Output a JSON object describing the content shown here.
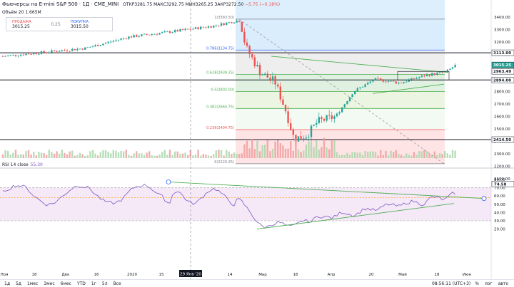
{
  "header": {
    "title": "Фьючерсы на E-mini S&P 500 · 1Д · CME_MINI",
    "open": "ОТКР3281.75",
    "high": "МАКС3292.75",
    "low": "МИН3265.25",
    "close": "ЗАКР3272.50",
    "change": "−5.75 (−0.18%)",
    "volume": "Объём 20  1.665M"
  },
  "trade": {
    "sell_label": "ПРОДАЖА",
    "sell_value": "3015.25",
    "spread": "0.25",
    "buy_label": "ПОКУПКА",
    "buy_value": "3015.50"
  },
  "rsi": {
    "label": "RSI 14 close",
    "value": "55.30"
  },
  "price_axis": [
    "3400.00",
    "3300.00",
    "3200.00",
    "3100.00",
    "2900.00",
    "2800.00",
    "2700.00",
    "2600.00",
    "2500.00",
    "2400.00",
    "2300.00",
    "2200.00",
    "2100.00"
  ],
  "price_badges": [
    {
      "text": "3113.00",
      "price": 3113,
      "color": "#131722"
    },
    {
      "text": "3015.25",
      "price": 3015.25,
      "color": "#26a69a"
    },
    {
      "text": "2963.49",
      "price": 2963.5,
      "color": "#131722"
    },
    {
      "text": "2894.00",
      "price": 2894,
      "color": "#131722"
    },
    {
      "text": "2414.50",
      "price": 2414.5,
      "color": "#131722"
    }
  ],
  "rsi_axis": [
    "80.00",
    "70.00",
    "60.00",
    "50.00",
    "40.00",
    "30.00",
    "20.00"
  ],
  "rsi_badge": "74.58",
  "rsi_badge_value": 74.58,
  "fib_levels": [
    {
      "label": "1(3383.50)",
      "price": 3383.5
    },
    {
      "label": "0.786(3134.75)",
      "price": 3134.75
    },
    {
      "label": "0.618(2939.25)",
      "price": 2939.25
    },
    {
      "label": "0.5(2802.00)",
      "price": 2802
    },
    {
      "label": "0.382(2664.75)",
      "price": 2664.75
    },
    {
      "label": "0.236(2494.75)",
      "price": 2494.75
    },
    {
      "label": "0(2220.25)",
      "price": 2220.25
    }
  ],
  "time_axis": [
    "Ноя",
    "18",
    "Дек",
    "16",
    "2020",
    "15",
    "Фев",
    "14",
    "Мар",
    "16",
    "Апр",
    "20",
    "Май",
    "18",
    "Июн"
  ],
  "cursor_date": "29 Янв '20",
  "timeframes": [
    "1д",
    "5д",
    "1мес",
    "3мес",
    "6мес",
    "YTD",
    "1г",
    "5л",
    "Все"
  ],
  "clock": "08:56:11 (UTC+3)",
  "right_controls": [
    "%",
    "лог",
    "авто"
  ],
  "colors": {
    "up": "#26a69a",
    "down": "#ef5350",
    "rsi": "#7e57c2",
    "trend": "#4caf50"
  }
}
